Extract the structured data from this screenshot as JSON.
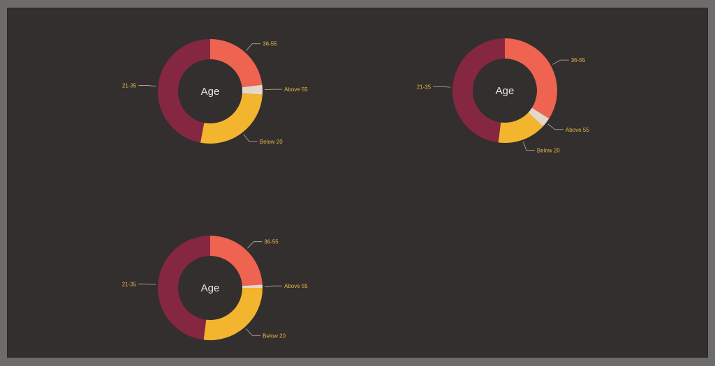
{
  "charts": {
    "chart_data": [
      {
        "type": "pie",
        "variant": "donut",
        "title": "Age",
        "categories": [
          "36-55",
          "Above 55",
          "Below 20",
          "21-35"
        ],
        "values": [
          23,
          3,
          27,
          47
        ],
        "colors": [
          "#ee6450",
          "#e6d8c8",
          "#f3b52e",
          "#852741"
        ]
      },
      {
        "type": "pie",
        "variant": "donut",
        "title": "Age",
        "categories": [
          "36-55",
          "Above 55",
          "Below 20",
          "21-35"
        ],
        "values": [
          34,
          3,
          15,
          48
        ],
        "colors": [
          "#ee6450",
          "#e6d8c8",
          "#f3b52e",
          "#852741"
        ]
      },
      {
        "type": "pie",
        "variant": "donut",
        "title": "Age",
        "categories": [
          "36-55",
          "Above 55",
          "Below 20",
          "21-35"
        ],
        "values": [
          24,
          1,
          27,
          48
        ],
        "colors": [
          "#ee6450",
          "#e6d8c8",
          "#f3b52e",
          "#852741"
        ]
      }
    ]
  }
}
